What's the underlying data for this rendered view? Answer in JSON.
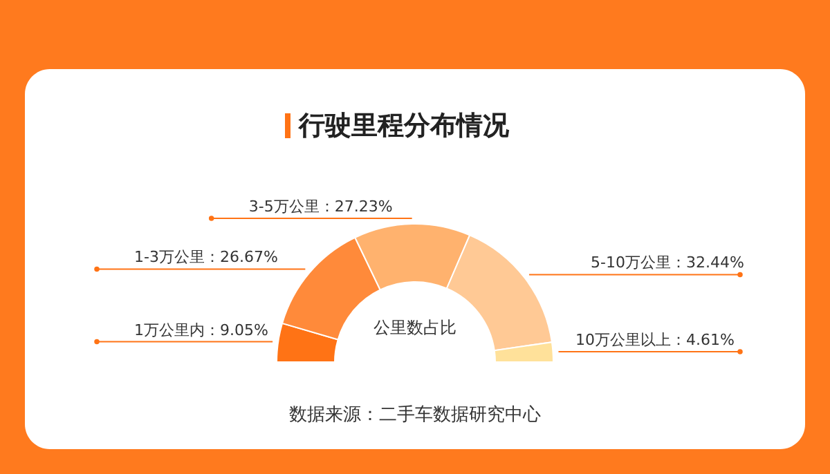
{
  "chart_data": {
    "type": "donut",
    "title": "行驶里程分布情况",
    "categories": [
      "1万公里内",
      "1-3万公里",
      "3-5万公里",
      "5-10万公里",
      "10万公里以上"
    ],
    "values": [
      9.05,
      26.67,
      27.23,
      32.44,
      4.61
    ],
    "colors": [
      "#ff7315",
      "#ff8a3a",
      "#ffb26e",
      "#ffc995",
      "#ffe19a"
    ],
    "value_labels": [
      "：9.05%",
      "：26.67%",
      "：27.23%",
      "：32.44%",
      "：4.61%"
    ],
    "annotations": [
      "公里数占比",
      "数据来源：二手车数据研究中心"
    ]
  }
}
